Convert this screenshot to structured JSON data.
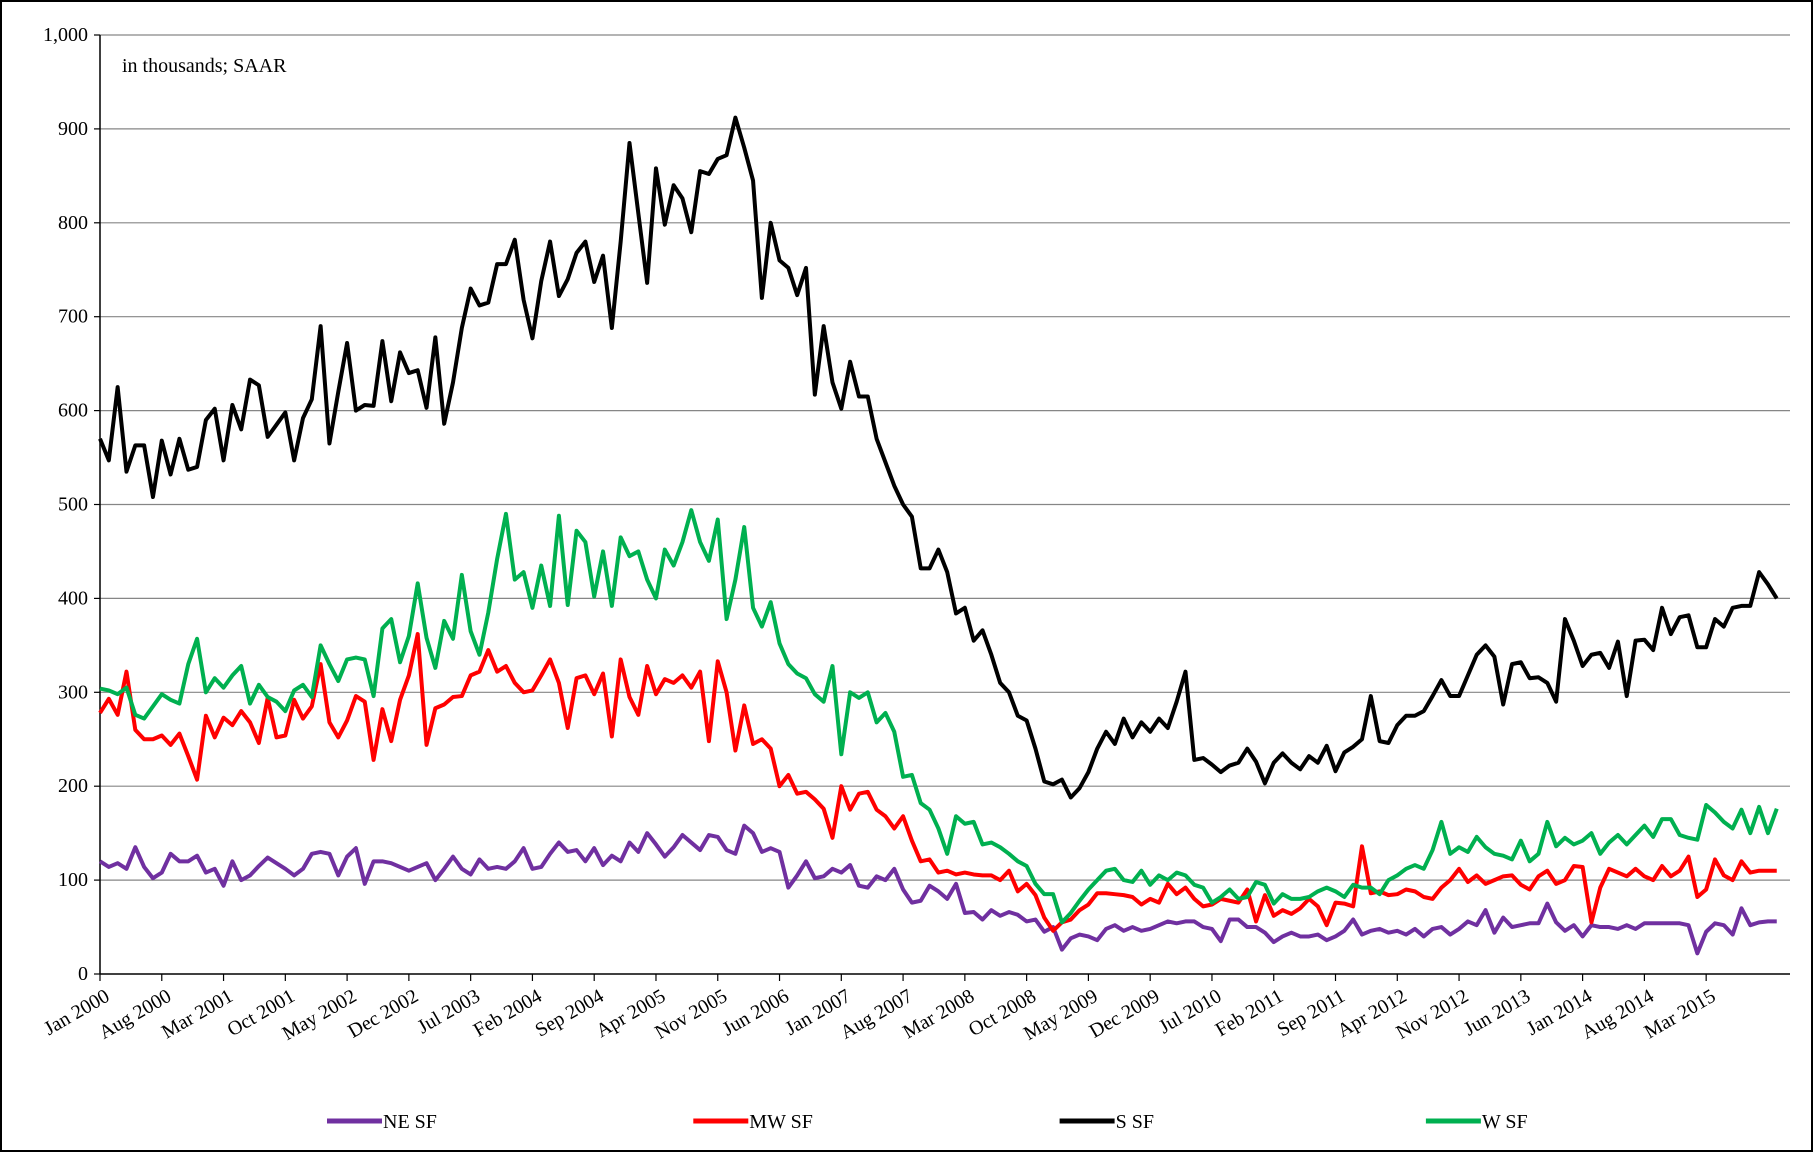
{
  "chart_data": {
    "type": "line",
    "annotation": "in thousands; SAAR",
    "categories": [
      "Jan 2000",
      null,
      null,
      null,
      null,
      null,
      null,
      "Aug 2000",
      null,
      null,
      null,
      null,
      null,
      null,
      "Mar 2001",
      null,
      null,
      null,
      null,
      null,
      null,
      "Oct 2001",
      null,
      null,
      null,
      null,
      null,
      null,
      "May 2002",
      null,
      null,
      null,
      null,
      null,
      null,
      "Dec 2002",
      null,
      null,
      null,
      null,
      null,
      null,
      "Jul 2003",
      null,
      null,
      null,
      null,
      null,
      null,
      "Feb 2004",
      null,
      null,
      null,
      null,
      null,
      null,
      "Sep 2004",
      null,
      null,
      null,
      null,
      null,
      null,
      "Apr 2005",
      null,
      null,
      null,
      null,
      null,
      null,
      "Nov 2005",
      null,
      null,
      null,
      null,
      null,
      null,
      "Jun 2006",
      null,
      null,
      null,
      null,
      null,
      null,
      "Jan 2007",
      null,
      null,
      null,
      null,
      null,
      null,
      "Aug 2007",
      null,
      null,
      null,
      null,
      null,
      null,
      "Mar 2008",
      null,
      null,
      null,
      null,
      null,
      null,
      "Oct 2008",
      null,
      null,
      null,
      null,
      null,
      null,
      "May 2009",
      null,
      null,
      null,
      null,
      null,
      null,
      "Dec 2009",
      null,
      null,
      null,
      null,
      null,
      null,
      "Jul 2010",
      null,
      null,
      null,
      null,
      null,
      null,
      "Feb 2011",
      null,
      null,
      null,
      null,
      null,
      null,
      "Sep 2011",
      null,
      null,
      null,
      null,
      null,
      null,
      "Apr 2012",
      null,
      null,
      null,
      null,
      null,
      null,
      "Nov 2012",
      null,
      null,
      null,
      null,
      null,
      null,
      "Jun 2013",
      null,
      null,
      null,
      null,
      null,
      null,
      "Jan 2014",
      null,
      null,
      null,
      null,
      null,
      null,
      "Aug 2014",
      null,
      null,
      null,
      null,
      null,
      null,
      "Mar 2015",
      null,
      null,
      null,
      null,
      null,
      null,
      null,
      null
    ],
    "series": [
      {
        "name": "NE SF",
        "color": "#7030a0",
        "values": [
          120,
          114,
          118,
          112,
          135,
          114,
          102,
          108,
          128,
          120,
          120,
          126,
          108,
          112,
          94,
          120,
          100,
          105,
          115,
          124,
          118,
          112,
          105,
          112,
          128,
          130,
          128,
          105,
          125,
          134,
          96,
          120,
          120,
          118,
          114,
          110,
          114,
          118,
          100,
          112,
          125,
          112,
          106,
          122,
          112,
          114,
          112,
          120,
          134,
          112,
          114,
          128,
          140,
          130,
          132,
          120,
          134,
          116,
          126,
          120,
          140,
          130,
          150,
          138,
          125,
          135,
          148,
          140,
          132,
          148,
          146,
          132,
          128,
          158,
          150,
          130,
          134,
          130,
          92,
          105,
          120,
          102,
          104,
          112,
          108,
          116,
          94,
          92,
          104,
          100,
          112,
          90,
          76,
          78,
          94,
          88,
          80,
          96,
          65,
          66,
          58,
          68,
          62,
          66,
          63,
          56,
          58,
          45,
          50,
          26,
          38,
          42,
          40,
          36,
          48,
          52,
          46,
          50,
          46,
          48,
          52,
          56,
          54,
          56,
          56,
          50,
          48,
          35,
          58,
          58,
          50,
          50,
          44,
          34,
          40,
          44,
          40,
          40,
          42,
          36,
          40,
          46,
          58,
          42,
          46,
          48,
          44,
          46,
          42,
          48,
          40,
          48,
          50,
          42,
          48,
          56,
          52,
          68,
          44,
          60,
          50,
          52,
          54,
          54,
          75,
          55,
          46,
          52,
          40,
          52,
          50,
          50,
          48,
          52,
          48,
          54,
          54,
          54,
          54,
          54,
          52,
          22,
          45,
          54,
          52,
          42,
          70,
          52,
          55,
          56,
          56
        ]
      },
      {
        "name": "MW SF",
        "color": "#ff0000",
        "values": [
          278,
          293,
          276,
          322,
          260,
          250,
          250,
          254,
          244,
          256,
          232,
          207,
          275,
          252,
          273,
          265,
          280,
          268,
          246,
          294,
          252,
          254,
          292,
          272,
          285,
          330,
          268,
          252,
          270,
          296,
          290,
          228,
          282,
          248,
          292,
          318,
          362,
          244,
          283,
          287,
          295,
          296,
          318,
          322,
          345,
          322,
          328,
          310,
          300,
          302,
          318,
          335,
          310,
          262,
          315,
          318,
          298,
          320,
          253,
          335,
          295,
          276,
          328,
          298,
          314,
          310,
          318,
          305,
          322,
          248,
          333,
          300,
          238,
          286,
          245,
          250,
          240,
          200,
          212,
          192,
          194,
          186,
          176,
          145,
          200,
          175,
          192,
          194,
          175,
          168,
          155,
          168,
          142,
          120,
          122,
          108,
          110,
          106,
          108,
          106,
          105,
          105,
          100,
          110,
          88,
          96,
          84,
          60,
          46,
          55,
          58,
          68,
          74,
          86,
          86,
          85,
          84,
          82,
          74,
          80,
          76,
          96,
          85,
          92,
          80,
          72,
          74,
          80,
          78,
          76,
          90,
          56,
          84,
          62,
          68,
          64,
          70,
          80,
          72,
          52,
          76,
          75,
          72,
          136,
          86,
          88,
          84,
          85,
          90,
          88,
          82,
          80,
          92,
          100,
          112,
          98,
          105,
          96,
          100,
          104,
          105,
          95,
          90,
          104,
          110,
          96,
          100,
          115,
          114,
          55,
          92,
          112,
          108,
          104,
          112,
          104,
          100,
          115,
          104,
          110,
          125,
          82,
          90,
          122,
          105,
          100,
          120,
          108,
          110,
          110,
          110
        ]
      },
      {
        "name": "S SF",
        "color": "#000000",
        "values": [
          570,
          547,
          625,
          535,
          563,
          563,
          508,
          568,
          532,
          570,
          537,
          540,
          590,
          602,
          547,
          606,
          580,
          633,
          627,
          572,
          585,
          598,
          547,
          592,
          612,
          690,
          565,
          620,
          672,
          600,
          606,
          605,
          674,
          610,
          662,
          640,
          643,
          603,
          678,
          586,
          630,
          688,
          730,
          712,
          715,
          756,
          756,
          782,
          718,
          677,
          738,
          780,
          722,
          740,
          768,
          780,
          737,
          765,
          688,
          780,
          885,
          810,
          736,
          858,
          798,
          840,
          826,
          790,
          855,
          852,
          868,
          872,
          912,
          880,
          845,
          720,
          800,
          760,
          752,
          723,
          752,
          617,
          690,
          630,
          602,
          652,
          615,
          615,
          570,
          545,
          520,
          500,
          487,
          432,
          432,
          452,
          428,
          384,
          390,
          355,
          366,
          340,
          310,
          300,
          275,
          270,
          240,
          205,
          202,
          207,
          188,
          198,
          215,
          240,
          258,
          245,
          272,
          252,
          268,
          258,
          272,
          262,
          290,
          322,
          228,
          230,
          223,
          215,
          222,
          225,
          240,
          226,
          203,
          225,
          235,
          225,
          218,
          232,
          225,
          243,
          216,
          236,
          242,
          250,
          296,
          248,
          246,
          265,
          275,
          275,
          280,
          296,
          313,
          296,
          296,
          318,
          340,
          350,
          338,
          287,
          330,
          332,
          315,
          316,
          310,
          290,
          378,
          355,
          328,
          340,
          342,
          326,
          354,
          296,
          355,
          356,
          345,
          390,
          362,
          380,
          382,
          348,
          348,
          378,
          370,
          390,
          392,
          392,
          428,
          415,
          400
        ]
      },
      {
        "name": "W SF",
        "color": "#00b050",
        "values": [
          304,
          302,
          298,
          305,
          276,
          272,
          285,
          298,
          292,
          288,
          330,
          357,
          300,
          315,
          305,
          318,
          328,
          288,
          308,
          295,
          290,
          280,
          302,
          308,
          295,
          350,
          330,
          312,
          335,
          337,
          335,
          296,
          368,
          378,
          332,
          360,
          416,
          358,
          326,
          376,
          357,
          425,
          365,
          340,
          385,
          442,
          490,
          420,
          428,
          390,
          435,
          392,
          488,
          393,
          472,
          460,
          402,
          450,
          392,
          465,
          445,
          450,
          420,
          400,
          452,
          435,
          460,
          494,
          460,
          440,
          484,
          378,
          420,
          476,
          390,
          370,
          396,
          352,
          330,
          320,
          315,
          298,
          290,
          328,
          234,
          300,
          294,
          300,
          268,
          278,
          258,
          210,
          212,
          182,
          175,
          155,
          128,
          168,
          160,
          162,
          138,
          140,
          135,
          128,
          120,
          115,
          96,
          85,
          85,
          55,
          65,
          78,
          90,
          100,
          110,
          112,
          100,
          98,
          110,
          95,
          105,
          100,
          108,
          105,
          95,
          92,
          76,
          82,
          90,
          80,
          82,
          98,
          95,
          75,
          85,
          80,
          80,
          82,
          88,
          92,
          88,
          82,
          95,
          92,
          92,
          85,
          100,
          105,
          112,
          116,
          112,
          132,
          162,
          128,
          135,
          130,
          146,
          135,
          128,
          126,
          122,
          142,
          120,
          128,
          162,
          136,
          145,
          138,
          142,
          150,
          128,
          140,
          148,
          138,
          148,
          158,
          146,
          165,
          165,
          148,
          145,
          143,
          180,
          172,
          162,
          155,
          175,
          150,
          178,
          150,
          176
        ]
      }
    ],
    "ylim": [
      0,
      1000
    ],
    "yticks": [
      0,
      100,
      200,
      300,
      400,
      500,
      600,
      700,
      800,
      900,
      {
        "value": 1000,
        "label": "1,000"
      }
    ],
    "grid": true,
    "legend": "bottom"
  }
}
